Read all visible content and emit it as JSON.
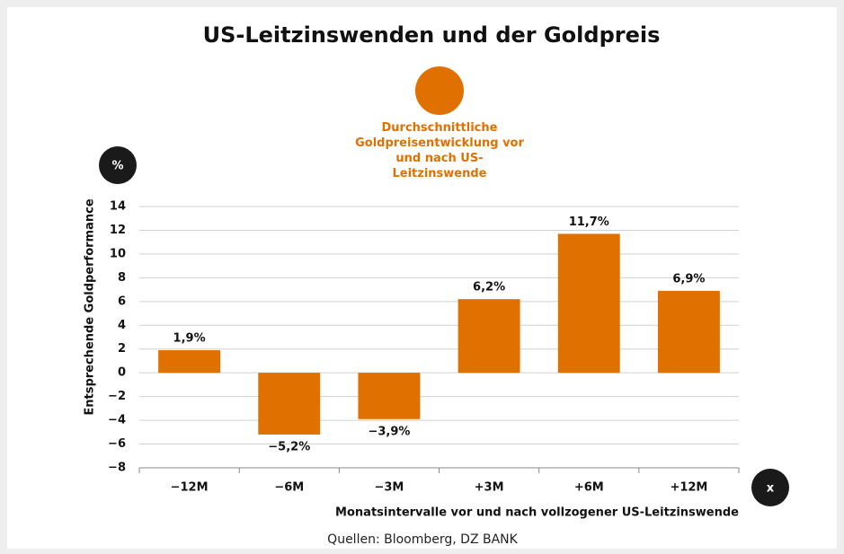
{
  "chart_data": {
    "type": "bar",
    "title": "US-Leitzinswenden und der Goldpreis",
    "y_label": "Entsprechende Goldperformance",
    "x_label": "Monatsintervalle vor und nach vollzogener US-Leitzinswende",
    "y_unit": "%",
    "x_unit": "x",
    "source": "Quellen: Bloomberg, DZ BANK",
    "categories": [
      "−12M",
      "−6M",
      "−3M",
      "+3M",
      "+6M",
      "+12M"
    ],
    "series": [
      {
        "name": "Durchschnittliche Goldpreisentwicklung vor und nach US-Leitzinswende",
        "color": "#e07000",
        "values": [
          1.9,
          -5.2,
          -3.9,
          6.2,
          11.7,
          6.9
        ],
        "value_labels": [
          "1,9%",
          "−5,2%",
          "−3,9%",
          "6,2%",
          "11,7%",
          "6,9%"
        ]
      }
    ],
    "ylim": [
      -8,
      14
    ],
    "yticks": [
      {
        "value": -8,
        "label": "−8"
      },
      {
        "value": -6,
        "label": "−6"
      },
      {
        "value": -4,
        "label": "−4"
      },
      {
        "value": -2,
        "label": "−2"
      },
      0,
      2,
      4,
      6,
      8,
      10,
      12,
      14
    ],
    "grid": true
  }
}
